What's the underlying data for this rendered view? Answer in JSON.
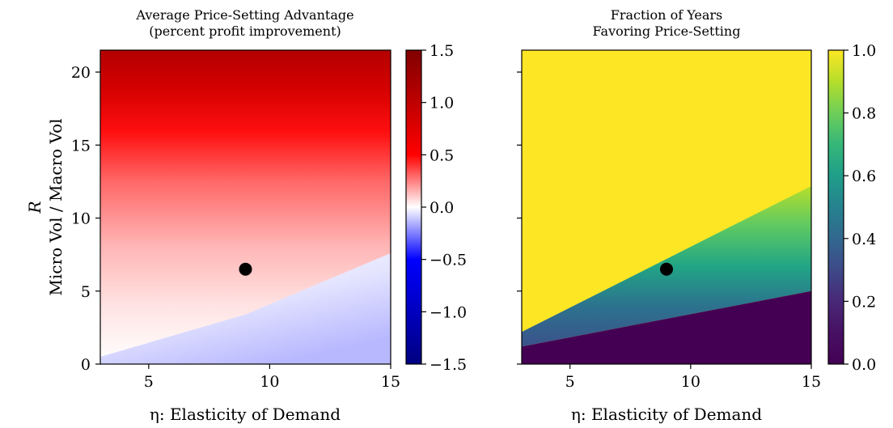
{
  "chart_data": [
    {
      "type": "heatmap",
      "title": "Average Price-Setting Advantage\n(percent profit improvement)",
      "xlabel": "η: Elasticity of Demand",
      "ylabel": "R\nMicro Vol / Macro Vol",
      "xlim": [
        3,
        15
      ],
      "ylim": [
        0,
        21.5
      ],
      "xticks": [
        5,
        10,
        15
      ],
      "yticks": [
        0,
        5,
        10,
        15,
        20
      ],
      "colormap": "seismic",
      "colorbar": {
        "min": -1.5,
        "max": 1.5,
        "ticks": [
          1.5,
          1.0,
          0.5,
          0.0,
          -0.5,
          -1.0,
          -1.5
        ]
      },
      "zero_contour": [
        [
          3,
          0.5
        ],
        [
          9,
          3.4
        ],
        [
          15,
          7.6
        ]
      ],
      "values_sample": {
        "x": [
          3,
          6,
          9,
          12,
          15
        ],
        "y": [
          0,
          5,
          10,
          15,
          20
        ],
        "z": [
          [
            -0.02,
            -0.05,
            -0.12,
            -0.18,
            -0.25
          ],
          [
            0.25,
            0.1,
            0.0,
            -0.05,
            -0.1
          ],
          [
            0.45,
            0.35,
            0.25,
            0.15,
            0.08
          ],
          [
            0.8,
            0.8,
            0.7,
            0.6,
            0.55
          ],
          [
            1.15,
            1.25,
            1.25,
            1.15,
            1.05
          ]
        ]
      },
      "marker": {
        "x": 9,
        "y": 6.5
      }
    },
    {
      "type": "heatmap",
      "title": "Fraction of Years\nFavoring Price-Setting",
      "xlabel": "η: Elasticity of Demand",
      "xlim": [
        3,
        15
      ],
      "ylim": [
        0,
        21.5
      ],
      "xticks": [
        5,
        10,
        15
      ],
      "colormap": "viridis",
      "colorbar": {
        "min": 0.0,
        "max": 1.0,
        "ticks": [
          1.0,
          0.8,
          0.6,
          0.4,
          0.2,
          0.0
        ]
      },
      "boundaries": {
        "lower_edge_of_yellow": [
          [
            3,
            2.2
          ],
          [
            15,
            12.2
          ]
        ],
        "upper_edge_of_dark": [
          [
            3,
            1.2
          ],
          [
            15,
            5.0
          ]
        ]
      },
      "marker": {
        "x": 9,
        "y": 6.5
      }
    }
  ],
  "colors": {
    "marker": "#000000",
    "frame": "#000000"
  }
}
